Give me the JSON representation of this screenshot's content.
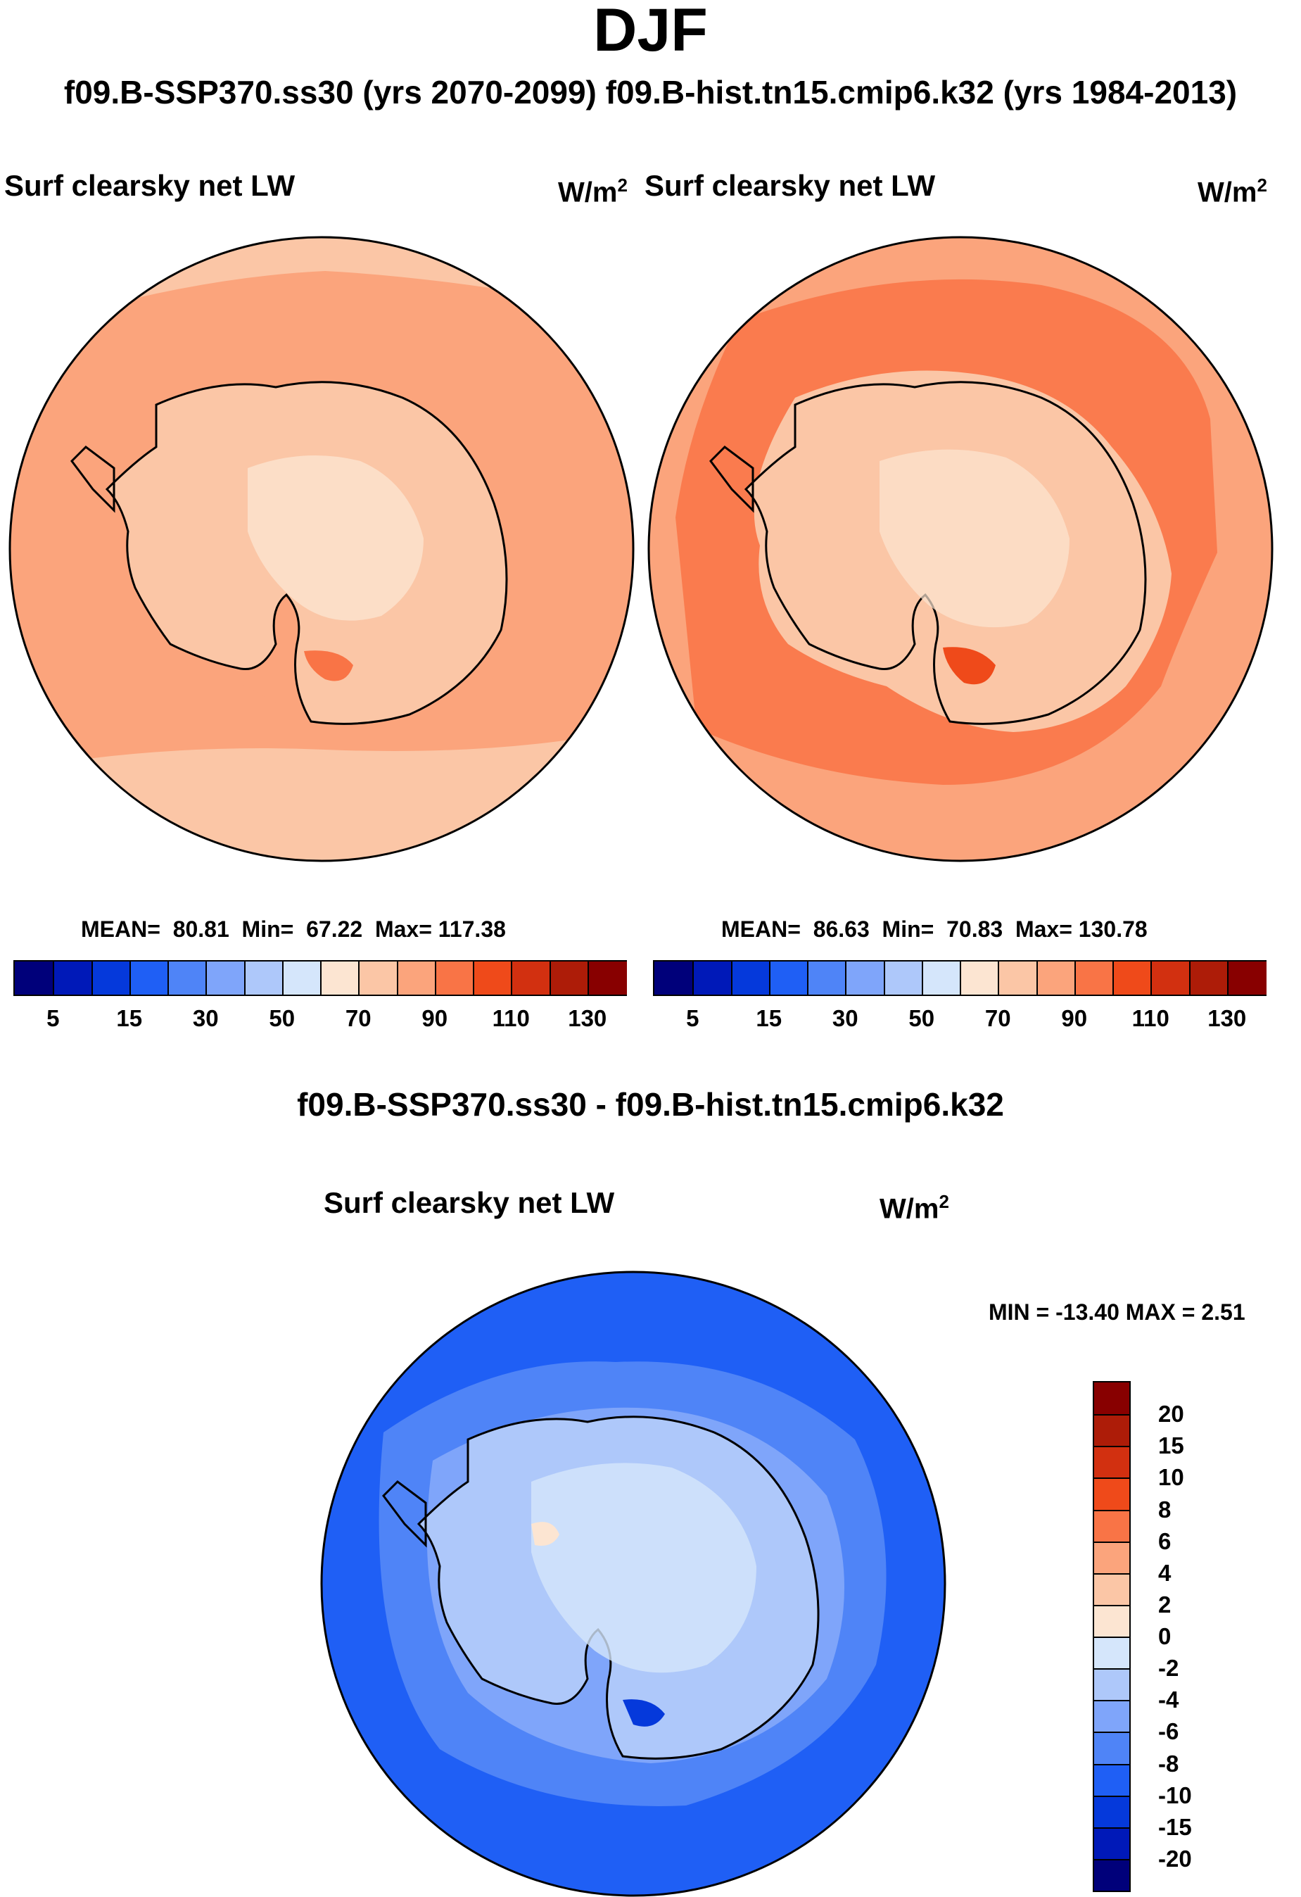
{
  "header": {
    "season": "DJF",
    "subtitle": "f09.B-SSP370.ss30 (yrs 2070-2099)  f09.B-hist.tn15.cmip6.k32 (yrs 1984-2013)",
    "diff_title": "f09.B-SSP370.ss30 - f09.B-hist.tn15.cmip6.k32"
  },
  "panels": {
    "left": {
      "variable": "Surf clearsky net LW",
      "units": "W/m",
      "units_exp": "2",
      "mean_label": "MEAN=",
      "mean": "80.81",
      "min_label": "Min=",
      "min": "67.22",
      "max_label": "Max=",
      "max": "117.38"
    },
    "right": {
      "variable": "Surf clearsky net LW",
      "units": "W/m",
      "units_exp": "2",
      "mean_label": "MEAN=",
      "mean": "86.63",
      "min_label": "Min=",
      "min": "70.83",
      "max_label": "Max=",
      "max": "130.78"
    },
    "diff": {
      "variable": "Surf clearsky net LW",
      "units": "W/m",
      "units_exp": "2",
      "minmax": "MIN = -13.40 MAX =   2.51"
    }
  },
  "colorbars": {
    "absolute": {
      "colors": [
        "#00007a",
        "#0019b8",
        "#0539db",
        "#1f5ff5",
        "#4f84f7",
        "#7fa5fa",
        "#aec8fa",
        "#d5e6fb",
        "#fce5d2",
        "#fbc6a6",
        "#fba47c",
        "#f97446",
        "#ef4a1a",
        "#d23010",
        "#ad1c08",
        "#880000"
      ],
      "ticks": [
        "5",
        "15",
        "30",
        "50",
        "70",
        "90",
        "110",
        "130"
      ]
    },
    "difference": {
      "colors": [
        "#00007a",
        "#0019b8",
        "#0539db",
        "#1f5ff5",
        "#4f84f7",
        "#7fa5fa",
        "#aec8fa",
        "#d5e6fb",
        "#fce5d2",
        "#fbc6a6",
        "#fba47c",
        "#f97446",
        "#ef4a1a",
        "#d23010",
        "#ad1c08",
        "#880000"
      ],
      "ticks": [
        "-20",
        "-15",
        "-10",
        "-8",
        "-6",
        "-4",
        "-2",
        "0",
        "2",
        "4",
        "6",
        "8",
        "10",
        "15",
        "20"
      ]
    }
  },
  "map_colors": {
    "abs_low": "#fce5d2",
    "abs_mid": "#fbc6a6",
    "abs_high": "#fba47c",
    "abs_peak": "#f97446",
    "abs_max": "#ef4a1a",
    "diff_ocean": "#1f5ff5",
    "diff_mid": "#4f84f7",
    "diff_light": "#7fa5fa",
    "diff_pale": "#aec8fa",
    "diff_ice": "#d5e6fb",
    "diff_pos": "#fce5d2"
  }
}
